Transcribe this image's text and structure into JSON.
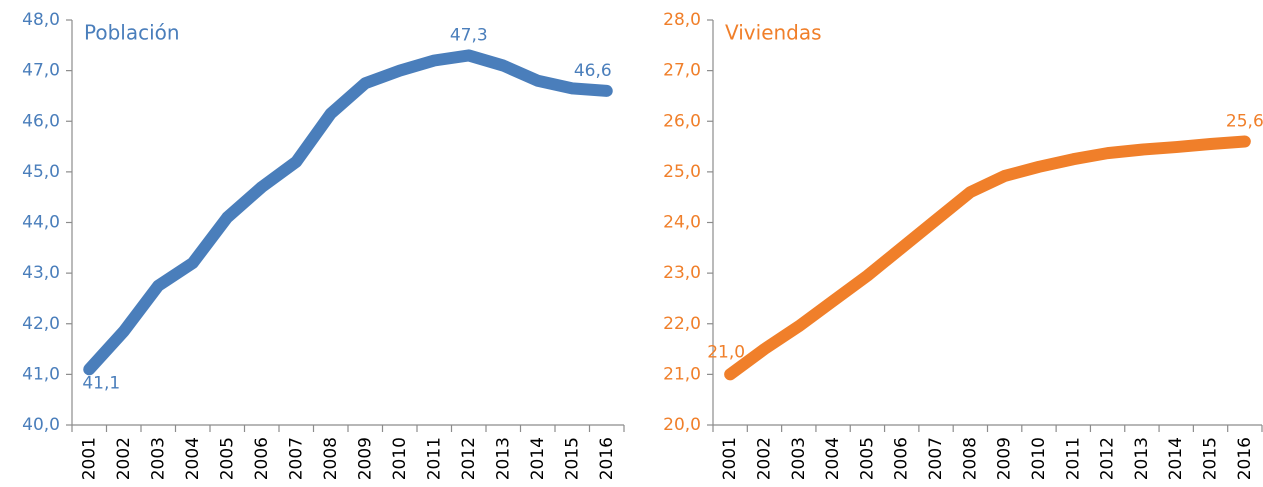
{
  "chart_data": [
    {
      "type": "line",
      "title": "Población",
      "categories": [
        "2001",
        "2002",
        "2003",
        "2004",
        "2005",
        "2006",
        "2007",
        "2008",
        "2009",
        "2010",
        "2011",
        "2012",
        "2013",
        "2014",
        "2015",
        "2016"
      ],
      "series": [
        {
          "name": "Población",
          "color": "#4a7ebb",
          "values": [
            41.1,
            41.85,
            42.75,
            43.2,
            44.1,
            44.7,
            45.2,
            46.15,
            46.75,
            47.0,
            47.2,
            47.3,
            47.1,
            46.8,
            46.65,
            46.6
          ],
          "value_labels": [
            "41,1",
            null,
            null,
            null,
            null,
            null,
            null,
            null,
            null,
            null,
            null,
            "47,3",
            null,
            null,
            null,
            "46,6"
          ]
        }
      ],
      "ylim": [
        40,
        48
      ],
      "yticks": [
        {
          "value": 40,
          "label": "40,0"
        },
        {
          "value": 41,
          "label": "41,0"
        },
        {
          "value": 42,
          "label": "42,0"
        },
        {
          "value": 43,
          "label": "43,0"
        },
        {
          "value": 44,
          "label": "44,0"
        },
        {
          "value": 45,
          "label": "45,0"
        },
        {
          "value": 46,
          "label": "46,0"
        },
        {
          "value": 47,
          "label": "47,0"
        },
        {
          "value": 48,
          "label": "48,0"
        }
      ]
    },
    {
      "type": "line",
      "title": "Viviendas",
      "categories": [
        "2001",
        "2002",
        "2003",
        "2004",
        "2005",
        "2006",
        "2007",
        "2008",
        "2009",
        "2010",
        "2011",
        "2012",
        "2013",
        "2014",
        "2015",
        "2016"
      ],
      "series": [
        {
          "name": "Viviendas",
          "color": "#f07f2a",
          "values": [
            21.0,
            21.5,
            21.95,
            22.45,
            22.95,
            23.5,
            24.05,
            24.6,
            24.92,
            25.1,
            25.25,
            25.37,
            25.44,
            25.49,
            25.55,
            25.6
          ],
          "value_labels": [
            "21,0",
            null,
            null,
            null,
            null,
            null,
            null,
            null,
            null,
            null,
            null,
            null,
            null,
            null,
            null,
            "25,6"
          ]
        }
      ],
      "ylim": [
        20,
        28
      ],
      "yticks": [
        {
          "value": 20,
          "label": "20,0"
        },
        {
          "value": 21,
          "label": "21,0"
        },
        {
          "value": 22,
          "label": "22,0"
        },
        {
          "value": 23,
          "label": "23,0"
        },
        {
          "value": 24,
          "label": "24,0"
        },
        {
          "value": 25,
          "label": "25,0"
        },
        {
          "value": 26,
          "label": "26,0"
        },
        {
          "value": 27,
          "label": "27,0"
        },
        {
          "value": 28,
          "label": "28,0"
        }
      ]
    }
  ]
}
